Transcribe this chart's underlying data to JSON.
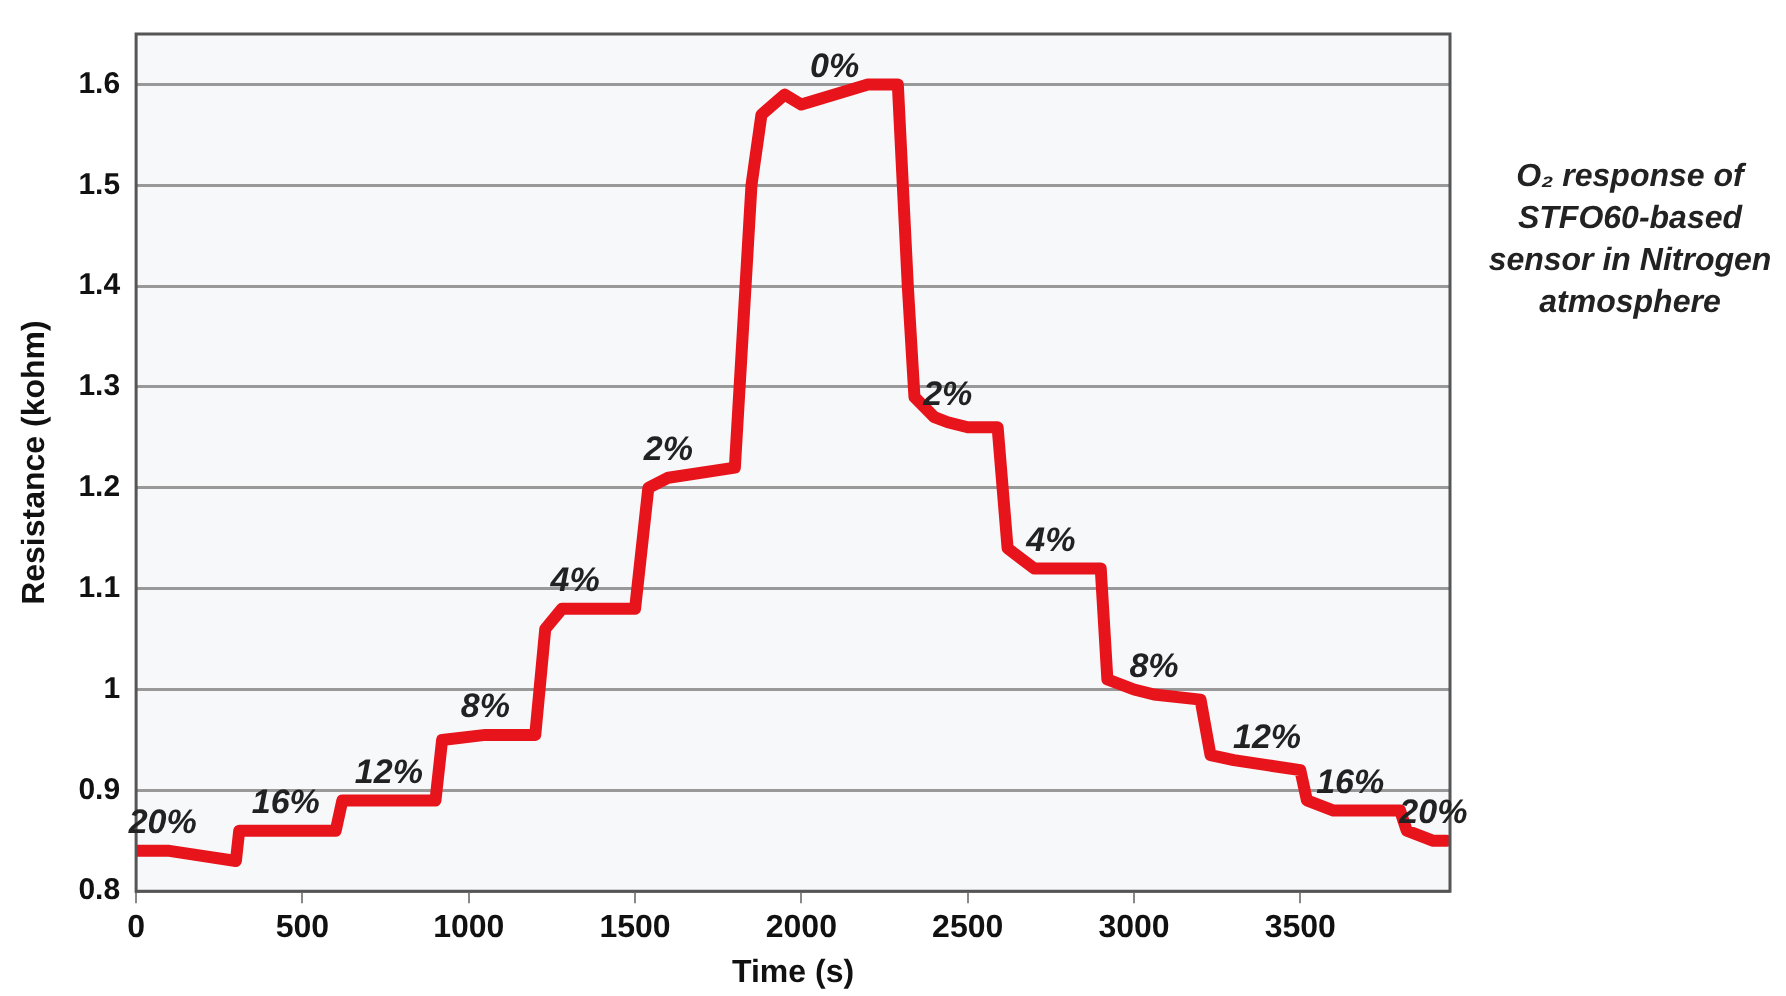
{
  "chart_data": {
    "type": "line",
    "title": "O₂ response of STFO60-based sensor in Nitrogen atmosphere",
    "xlabel": "Time (s)",
    "ylabel": "Resistance (kohm)",
    "x": [
      0,
      80,
      100,
      300,
      310,
      450,
      600,
      620,
      760,
      900,
      920,
      1050,
      1200,
      1230,
      1280,
      1320,
      1500,
      1540,
      1600,
      1800,
      1850,
      1880,
      1950,
      2000,
      2100,
      2200,
      2290,
      2320,
      2340,
      2400,
      2440,
      2500,
      2590,
      2620,
      2700,
      2750,
      2900,
      2920,
      3000,
      3060,
      3200,
      3230,
      3300,
      3400,
      3500,
      3520,
      3600,
      3650,
      3800,
      3820,
      3900,
      3940
    ],
    "series": [
      {
        "color": "#e8141b",
        "values": [
          0.84,
          0.84,
          0.84,
          0.83,
          0.86,
          0.86,
          0.86,
          0.89,
          0.89,
          0.89,
          0.95,
          0.955,
          0.955,
          1.06,
          1.08,
          1.08,
          1.08,
          1.2,
          1.21,
          1.22,
          1.5,
          1.57,
          1.59,
          1.58,
          1.59,
          1.6,
          1.6,
          1.4,
          1.29,
          1.27,
          1.265,
          1.26,
          1.26,
          1.14,
          1.12,
          1.12,
          1.12,
          1.01,
          1.0,
          0.995,
          0.99,
          0.935,
          0.93,
          0.925,
          0.92,
          0.89,
          0.88,
          0.88,
          0.88,
          0.86,
          0.85,
          0.85
        ]
      }
    ],
    "xlim": [
      0,
      3950
    ],
    "xticks": [
      0,
      500,
      1000,
      1500,
      2000,
      2500,
      3000,
      3500
    ],
    "ylim": [
      0.8,
      1.65
    ],
    "yticks": [
      0.8,
      0.9,
      1,
      1.1,
      1.2,
      1.3,
      1.4,
      1.5,
      1.6
    ],
    "grid": "y",
    "legend": false,
    "marker": "none",
    "line_style": "solid",
    "annotations": [
      {
        "text": "20%",
        "x": 80,
        "y": 0.84
      },
      {
        "text": "16%",
        "x": 450,
        "y": 0.86
      },
      {
        "text": "12%",
        "x": 760,
        "y": 0.89
      },
      {
        "text": "8%",
        "x": 1050,
        "y": 0.955
      },
      {
        "text": "4%",
        "x": 1320,
        "y": 1.08
      },
      {
        "text": "2%",
        "x": 1600,
        "y": 1.21
      },
      {
        "text": "0%",
        "x": 2100,
        "y": 1.59
      },
      {
        "text": "2%",
        "x": 2440,
        "y": 1.265
      },
      {
        "text": "4%",
        "x": 2750,
        "y": 1.12
      },
      {
        "text": "8%",
        "x": 3060,
        "y": 0.995
      },
      {
        "text": "12%",
        "x": 3400,
        "y": 0.925
      },
      {
        "text": "16%",
        "x": 3650,
        "y": 0.88
      },
      {
        "text": "20%",
        "x": 3900,
        "y": 0.85
      }
    ]
  }
}
